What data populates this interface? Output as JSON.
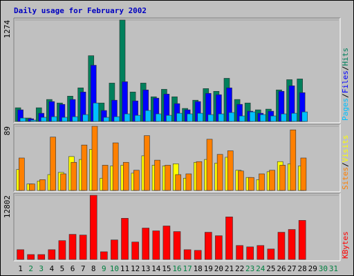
{
  "chart_data": [
    {
      "type": "bar",
      "title": "Daily usage for February 2002",
      "ylim": [
        0,
        1274
      ],
      "yticks": [
        1274
      ],
      "legend_separator": "/",
      "series": [
        {
          "name": "Hits",
          "color": "#00805c",
          "values": [
            172,
            43,
            172,
            276,
            232,
            318,
            422,
            826,
            232,
            482,
            1274,
            370,
            482,
            310,
            404,
            310,
            164,
            267,
            413,
            379,
            542,
            276,
            232,
            146,
            155,
            396,
            525,
            534,
            null,
            null,
            null
          ]
        },
        {
          "name": "Files",
          "color": "#0000ff",
          "values": [
            146,
            34,
            103,
            250,
            215,
            276,
            370,
            706,
            138,
            267,
            499,
            258,
            396,
            293,
            344,
            224,
            146,
            250,
            353,
            336,
            422,
            215,
            129,
            103,
            129,
            379,
            448,
            362,
            null,
            null,
            null
          ]
        },
        {
          "name": "Pages",
          "color": "#00c0ff",
          "values": [
            43,
            17,
            52,
            60,
            52,
            60,
            86,
            232,
            52,
            60,
            95,
            77,
            138,
            95,
            77,
            103,
            95,
            103,
            86,
            95,
            112,
            69,
            120,
            86,
            69,
            95,
            103,
            120,
            null,
            null,
            null
          ]
        }
      ]
    },
    {
      "type": "bar",
      "ylim": [
        0,
        89
      ],
      "yticks": [
        89
      ],
      "legend_separator": "/",
      "series": [
        {
          "name": "Visits",
          "color": "#ffff00",
          "values": [
            29,
            9,
            13,
            22,
            25,
            47,
            43,
            57,
            17,
            34,
            35,
            24,
            48,
            35,
            34,
            37,
            17,
            39,
            43,
            38,
            46,
            28,
            18,
            15,
            26,
            40,
            37,
            34,
            null,
            null,
            null
          ]
        },
        {
          "name": "Sites",
          "color": "#ff8000",
          "values": [
            45,
            9,
            15,
            74,
            23,
            39,
            63,
            89,
            35,
            66,
            39,
            28,
            76,
            42,
            35,
            22,
            23,
            40,
            71,
            50,
            55,
            27,
            18,
            23,
            28,
            35,
            84,
            45,
            null,
            null,
            null
          ]
        }
      ]
    },
    {
      "type": "bar",
      "ylim": [
        0,
        12802
      ],
      "yticks": [
        12802
      ],
      "categories": [
        "1",
        "2",
        "3",
        "4",
        "5",
        "6",
        "7",
        "8",
        "9",
        "10",
        "11",
        "12",
        "13",
        "14",
        "15",
        "16",
        "17",
        "18",
        "19",
        "20",
        "21",
        "22",
        "23",
        "24",
        "25",
        "26",
        "27",
        "28",
        "29",
        "30",
        "31"
      ],
      "weekend_color": "#008040",
      "weekend_categories": [
        2,
        3,
        9,
        10,
        16,
        17,
        23,
        24,
        30,
        31
      ],
      "series": [
        {
          "name": "KBytes",
          "color": "#ff0000",
          "values": [
            1948,
            974,
            974,
            1948,
            3757,
            5009,
            4870,
            12802,
            1531,
            3896,
            8210,
            3479,
            6262,
            5705,
            6679,
            5566,
            1948,
            1809,
            5427,
            4731,
            8488,
            2783,
            2505,
            2783,
            2087,
            5427,
            5984,
            7793,
            null,
            null,
            null
          ]
        }
      ]
    }
  ]
}
